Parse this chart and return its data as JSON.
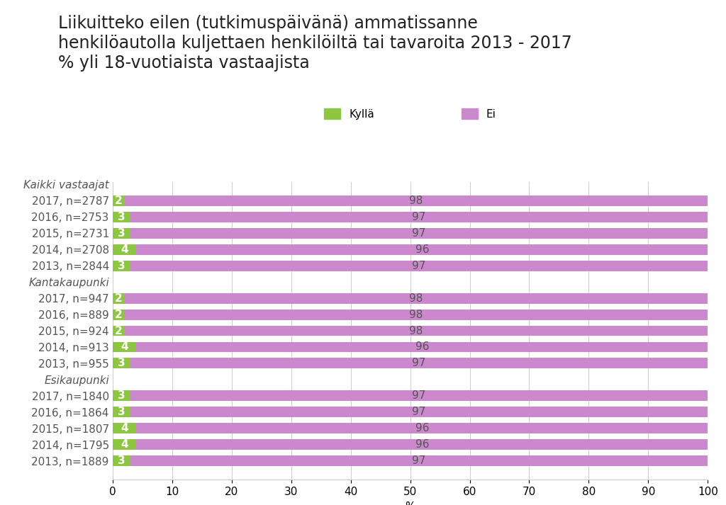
{
  "title_line1": "Liikuitteko eilen (tutkimuspäivänä) ammatissanne",
  "title_line2": "henkilöautolla kuljettaen henkilöiltä tai tavaroita 2013 - 2017",
  "title_line3": "% yli 18-vuotiaista vastaajista",
  "categories": [
    "Kaikki vastaajat",
    "2017, n=2787",
    "2016, n=2753",
    "2015, n=2731",
    "2014, n=2708",
    "2013, n=2844",
    "Kantakaupunki",
    "2017, n=947",
    "2016, n=889",
    "2015, n=924",
    "2014, n=913",
    "2013, n=955",
    "Esikaupunki",
    "2017, n=1840",
    "2016, n=1864",
    "2015, n=1807",
    "2014, n=1795",
    "2013, n=1889"
  ],
  "kylla_values": [
    null,
    2,
    3,
    3,
    4,
    3,
    null,
    2,
    2,
    2,
    4,
    3,
    null,
    3,
    3,
    4,
    4,
    3
  ],
  "ei_values": [
    null,
    98,
    97,
    97,
    96,
    97,
    null,
    98,
    98,
    98,
    96,
    97,
    null,
    97,
    97,
    96,
    96,
    97
  ],
  "header_rows": [
    0,
    6,
    12
  ],
  "color_kylla": "#8dc63f",
  "color_ei": "#cc88cc",
  "color_bar_label_dark": "#555555",
  "legend_kylla": "Kyllä",
  "legend_ei": "Ei",
  "xlabel": "%",
  "xlim": [
    0,
    100
  ],
  "xticks": [
    0,
    10,
    20,
    30,
    40,
    50,
    60,
    70,
    80,
    90,
    100
  ],
  "bar_height": 0.65,
  "background_color": "#ffffff",
  "title_fontsize": 17,
  "tick_fontsize": 11,
  "label_fontsize": 11,
  "header_fontsize": 11
}
